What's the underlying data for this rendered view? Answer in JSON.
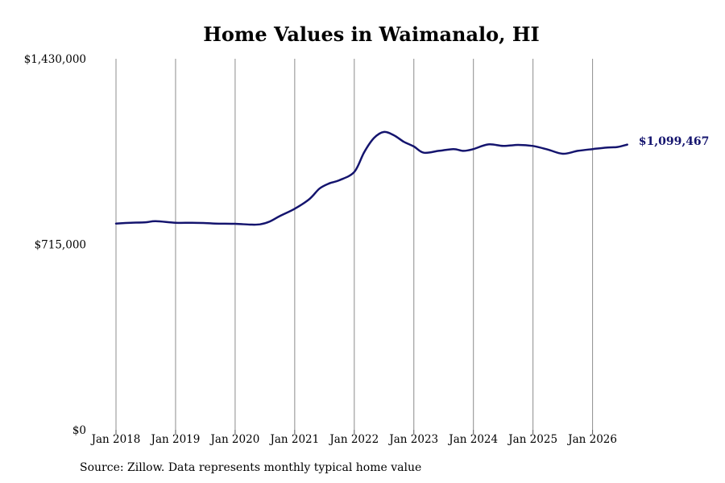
{
  "chart_data": {
    "type": "line",
    "title": "Home Values in Waimanalo, HI",
    "xlabel": "",
    "ylabel": "",
    "x_range": [
      "2018-01",
      "2026-08"
    ],
    "ylim": [
      0,
      1430000
    ],
    "y_ticks": [
      0,
      715000,
      1430000
    ],
    "y_tick_labels": [
      "$0",
      "$715,000",
      "$1,430,000"
    ],
    "x_ticks": [
      "2018-01",
      "2019-01",
      "2020-01",
      "2021-01",
      "2022-01",
      "2023-01",
      "2024-01",
      "2025-01",
      "2026-01"
    ],
    "x_tick_labels": [
      "Jan 2018",
      "Jan 2019",
      "Jan 2020",
      "Jan 2021",
      "Jan 2022",
      "Jan 2023",
      "Jan 2024",
      "Jan 2025",
      "Jan 2026"
    ],
    "grid": "vertical lines at x ticks",
    "series": [
      {
        "color": "#14146e",
        "points": [
          [
            "2018-01",
            795000
          ],
          [
            "2018-04",
            798000
          ],
          [
            "2018-07",
            800000
          ],
          [
            "2018-09",
            804000
          ],
          [
            "2019-01",
            798000
          ],
          [
            "2019-04",
            798000
          ],
          [
            "2019-07",
            797000
          ],
          [
            "2019-09",
            795000
          ],
          [
            "2020-01",
            794000
          ],
          [
            "2020-04",
            791000
          ],
          [
            "2020-06",
            792000
          ],
          [
            "2020-08",
            803000
          ],
          [
            "2020-10",
            824000
          ],
          [
            "2021-01",
            852000
          ],
          [
            "2021-04",
            890000
          ],
          [
            "2021-06",
            930000
          ],
          [
            "2021-08",
            950000
          ],
          [
            "2021-10",
            962000
          ],
          [
            "2022-01",
            994000
          ],
          [
            "2022-03",
            1070000
          ],
          [
            "2022-05",
            1125000
          ],
          [
            "2022-07",
            1148000
          ],
          [
            "2022-09",
            1135000
          ],
          [
            "2022-11",
            1110000
          ],
          [
            "2023-01",
            1092000
          ],
          [
            "2023-03",
            1068000
          ],
          [
            "2023-06",
            1075000
          ],
          [
            "2023-09",
            1082000
          ],
          [
            "2023-11",
            1075000
          ],
          [
            "2024-01",
            1082000
          ],
          [
            "2024-04",
            1100000
          ],
          [
            "2024-07",
            1094000
          ],
          [
            "2024-10",
            1098000
          ],
          [
            "2025-01",
            1094000
          ],
          [
            "2025-04",
            1080000
          ],
          [
            "2025-07",
            1064000
          ],
          [
            "2025-10",
            1075000
          ],
          [
            "2026-01",
            1082000
          ],
          [
            "2026-04",
            1088000
          ],
          [
            "2026-06",
            1090000
          ],
          [
            "2026-08",
            1099467
          ]
        ]
      }
    ],
    "annotations": [
      {
        "x": "2026-08",
        "y": 1099467,
        "text": "$1,099,467"
      }
    ]
  },
  "source_note": "Source: Zillow. Data represents monthly typical home value"
}
